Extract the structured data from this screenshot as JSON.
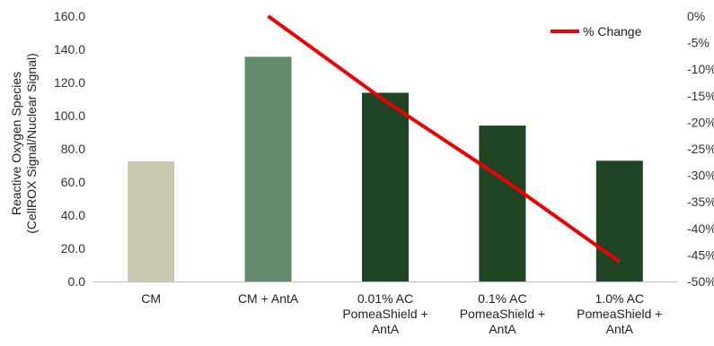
{
  "chart_data": {
    "type": "bar",
    "categories": [
      [
        "CM"
      ],
      [
        "CM + AntA"
      ],
      [
        "0.01% AC",
        "PomeaShield +",
        "AntA"
      ],
      [
        "0.1% AC",
        "PomeaShield +",
        "AntA"
      ],
      [
        "1.0% AC",
        "PomeaShield +",
        "AntA"
      ]
    ],
    "bars": {
      "values": [
        72.5,
        135.5,
        113.8,
        94.0,
        72.8
      ],
      "colors": [
        "#c8c8ae",
        "#648a6c",
        "#1e4424",
        "#1e4424",
        "#1e4424"
      ]
    },
    "line_series": {
      "name": "% Change",
      "color": "#ee0000",
      "values": [
        0,
        -16,
        -30.6,
        -46.3
      ]
    },
    "ylabel": [
      "Reactive Oxygen Species",
      "(CellROX Signal/Nuclear Signal)"
    ],
    "ylim": [
      0,
      160
    ],
    "y_ticks": [
      "160.0",
      "140.0",
      "120.0",
      "100.0",
      "80.0",
      "60.0",
      "40.0",
      "20.0",
      "0.0"
    ],
    "y2lim": [
      -50,
      0
    ],
    "y2_ticks": [
      "0%",
      "-5%",
      "-10%",
      "-15%",
      "-20%",
      "-25%",
      "-30%",
      "-35%",
      "-40%",
      "-45%",
      "-50%"
    ],
    "legend_position": "top-right",
    "grid": false
  }
}
